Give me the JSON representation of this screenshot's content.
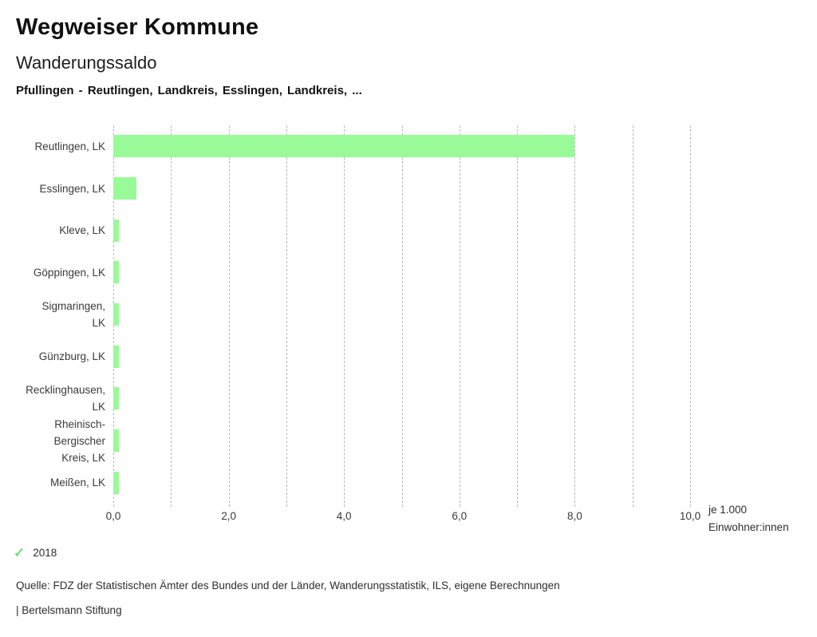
{
  "page": {
    "app_title": "Wegweiser Kommune",
    "chart_title": "Wanderungssaldo",
    "subtitle": "Pfullingen - Reutlingen, Landkreis, Esslingen, Landkreis, ...",
    "source": "Quelle: FDZ der Statistischen Ämter des Bundes und der Länder, Wanderungsstatistik, ILS, eigene Berechnungen",
    "brand": "| Bertelsmann Stiftung"
  },
  "legend": {
    "check_icon": "✓",
    "year": "2018",
    "check_color": "#79da79"
  },
  "chart_data": {
    "type": "bar",
    "orientation": "horizontal",
    "title": "Wanderungssaldo",
    "subtitle": "Pfullingen - Reutlingen, Landkreis, Esslingen, Landkreis, ...",
    "categories": [
      "Reutlingen, LK",
      "Esslingen, LK",
      "Kleve, LK",
      "Göppingen, LK",
      "Sigmaringen, LK",
      "Günzburg, LK",
      "Recklinghausen, LK",
      "Rheinisch-Bergischer Kreis, LK",
      "Meißen, LK"
    ],
    "category_label_lines": [
      [
        "Reutlingen, LK"
      ],
      [
        "Esslingen, LK"
      ],
      [
        "Kleve, LK"
      ],
      [
        "Göppingen, LK"
      ],
      [
        "Sigmaringen,",
        "LK"
      ],
      [
        "Günzburg, LK"
      ],
      [
        "Recklinghausen,",
        "LK"
      ],
      [
        "Rheinisch-",
        "Bergischer",
        "Kreis, LK"
      ],
      [
        "Meißen, LK"
      ]
    ],
    "series": [
      {
        "name": "2018",
        "values": [
          8.0,
          0.4,
          0.1,
          0.1,
          0.1,
          0.1,
          0.1,
          0.1,
          0.1
        ]
      }
    ],
    "xlim": [
      0,
      10
    ],
    "x_major_ticks": [
      "0,0",
      "2,0",
      "4,0",
      "6,0",
      "8,0",
      "10,0"
    ],
    "x_minor_step": 1.0,
    "xlabel_lines": [
      "je 1.000",
      "Einwohner:innen"
    ],
    "ylabel": "",
    "grid": "dashed-vertical",
    "bar_color": "#98fb98",
    "legend_position": "bottom-left"
  }
}
